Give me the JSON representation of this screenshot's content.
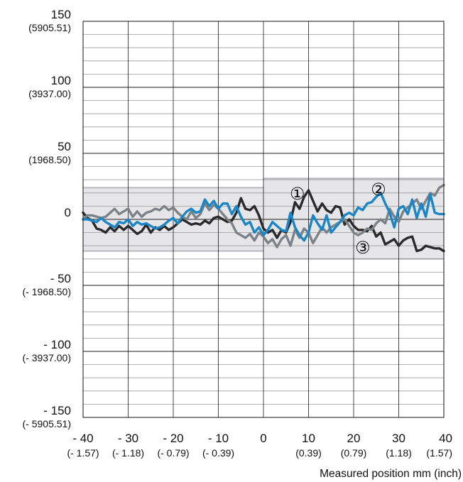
{
  "chart_data": {
    "type": "line",
    "xlabel": "Measured position mm (inch)",
    "ylabel": "",
    "xlim": [
      -40,
      40
    ],
    "ylim": [
      -150,
      150
    ],
    "grid": true,
    "x_ticks": [
      {
        "value": -40,
        "main": "- 40",
        "sub": "(- 1.57)"
      },
      {
        "value": -30,
        "main": "- 30",
        "sub": "(- 1.18)"
      },
      {
        "value": -20,
        "main": "- 20",
        "sub": "(- 0.79)"
      },
      {
        "value": -10,
        "main": "- 10",
        "sub": "(- 0.39)"
      },
      {
        "value": 0,
        "main": "0",
        "sub": ""
      },
      {
        "value": 10,
        "main": "10",
        "sub": "(0.39)"
      },
      {
        "value": 20,
        "main": "20",
        "sub": "(0.79)"
      },
      {
        "value": 30,
        "main": "30",
        "sub": "(1.18)"
      },
      {
        "value": 40,
        "main": "40",
        "sub": "(1.57)"
      }
    ],
    "y_ticks": [
      {
        "value": 150,
        "main": "150",
        "sub": "(5905.51)"
      },
      {
        "value": 100,
        "main": "100",
        "sub": "(3937.00)"
      },
      {
        "value": 50,
        "main": "50",
        "sub": "(1968.50)"
      },
      {
        "value": 0,
        "main": "0",
        "sub": ""
      },
      {
        "value": -50,
        "main": "- 50",
        "sub": "(- 1968.50)"
      },
      {
        "value": -100,
        "main": "- 100",
        "sub": "(- 3937.00)"
      },
      {
        "value": -150,
        "main": "- 150",
        "sub": "(- 5905.51)"
      }
    ],
    "bands": [
      {
        "x_from": -40,
        "x_to": 0,
        "y_from": -24,
        "y_to": 24,
        "color": "#e6e6e8"
      },
      {
        "x_from": 0,
        "x_to": 40,
        "y_from": -30,
        "y_to": 31,
        "color": "#e6e6e8"
      }
    ],
    "annotations": [
      {
        "text": "①",
        "x": 7.5,
        "y": 20
      },
      {
        "text": "②",
        "x": 25.5,
        "y": 23
      },
      {
        "text": "③",
        "x": 22,
        "y": -21
      }
    ],
    "series": [
      {
        "color": "#2a2a2a",
        "x": [
          -40,
          -39,
          -38,
          -37,
          -36,
          -35,
          -34,
          -33,
          -32,
          -31,
          -30,
          -29,
          -28,
          -27,
          -26,
          -25,
          -24,
          -23,
          -22,
          -21,
          -20,
          -19,
          -18,
          -17,
          -16,
          -15,
          -14,
          -13,
          -12,
          -11,
          -10,
          -9,
          -8,
          -7,
          -6,
          -5,
          -4,
          -3,
          -2,
          -1,
          0,
          1,
          2,
          3,
          4,
          5,
          6,
          7,
          8,
          9,
          10,
          11,
          12,
          13,
          14,
          15,
          16,
          17,
          18,
          19,
          20,
          21,
          22,
          23,
          24,
          25,
          26,
          27,
          28,
          29,
          30,
          31,
          32,
          33,
          34,
          35,
          36,
          37,
          38,
          39,
          40
        ],
        "y": [
          5,
          1,
          -1,
          -7,
          -8,
          -10,
          -6,
          -9,
          -5,
          -8,
          -5,
          -8,
          -11,
          -9,
          -4,
          -10,
          -6,
          -8,
          -5,
          -8,
          -6,
          -3,
          0,
          -2,
          -4,
          -3,
          -4,
          -1,
          -3,
          1,
          2,
          0,
          -2,
          -1,
          5,
          16,
          8,
          7,
          10,
          3,
          -7,
          -10,
          -8,
          -14,
          -8,
          -10,
          -2,
          13,
          8,
          17,
          22,
          14,
          6,
          12,
          7,
          5,
          10,
          9,
          -4,
          0,
          -5,
          -8,
          -8,
          -9,
          -5,
          -13,
          -10,
          -19,
          -17,
          -15,
          -20,
          -16,
          -14,
          -13,
          -24,
          -23,
          -20,
          -21,
          -22,
          -22,
          -24
        ]
      },
      {
        "color": "#7c8388",
        "x": [
          -40,
          -39,
          -38,
          -37,
          -36,
          -35,
          -34,
          -33,
          -32,
          -31,
          -30,
          -29,
          -28,
          -27,
          -26,
          -25,
          -24,
          -23,
          -22,
          -21,
          -20,
          -19,
          -18,
          -17,
          -16,
          -15,
          -14,
          -13,
          -12,
          -11,
          -10,
          -9,
          -8,
          -7,
          -6,
          -5,
          -4,
          -3,
          -2,
          -1,
          0,
          1,
          2,
          3,
          4,
          5,
          6,
          7,
          8,
          9,
          10,
          11,
          12,
          13,
          14,
          15,
          16,
          17,
          18,
          19,
          20,
          21,
          22,
          23,
          24,
          25,
          26,
          27,
          28,
          29,
          30,
          31,
          32,
          33,
          34,
          35,
          36,
          37,
          38,
          39,
          40
        ],
        "y": [
          0,
          3,
          3,
          2,
          1,
          2,
          5,
          8,
          4,
          6,
          8,
          2,
          6,
          2,
          5,
          6,
          8,
          7,
          10,
          7,
          9,
          5,
          2,
          0,
          6,
          1,
          4,
          12,
          7,
          11,
          8,
          4,
          0,
          -3,
          -10,
          -12,
          -14,
          -11,
          -16,
          -10,
          -13,
          -18,
          -15,
          -21,
          -15,
          -12,
          -20,
          -8,
          -14,
          -7,
          -10,
          -18,
          -12,
          -6,
          -10,
          -6,
          -4,
          -2,
          0,
          -5,
          -10,
          -12,
          -10,
          -7,
          -8,
          -3,
          0,
          -3,
          8,
          2,
          -2,
          6,
          9,
          12,
          15,
          8,
          14,
          20,
          18,
          24,
          26
        ]
      },
      {
        "color": "#1a86c7",
        "x": [
          -40,
          -39,
          -38,
          -37,
          -36,
          -35,
          -34,
          -33,
          -32,
          -31,
          -30,
          -29,
          -28,
          -27,
          -26,
          -25,
          -24,
          -23,
          -22,
          -21,
          -20,
          -19,
          -18,
          -17,
          -16,
          -15,
          -14,
          -13,
          -12,
          -11,
          -10,
          -9,
          -8,
          -7,
          -6,
          -5,
          -4,
          -3,
          -2,
          -1,
          0,
          1,
          2,
          3,
          4,
          5,
          6,
          7,
          8,
          9,
          10,
          11,
          12,
          13,
          14,
          15,
          16,
          17,
          18,
          19,
          20,
          21,
          22,
          23,
          24,
          25,
          26,
          27,
          28,
          29,
          30,
          31,
          32,
          33,
          34,
          35,
          36,
          37,
          38,
          39,
          40
        ],
        "y": [
          0,
          0,
          -1,
          -2,
          1,
          -2,
          -4,
          -6,
          -2,
          -3,
          0,
          -5,
          -2,
          -4,
          -3,
          -5,
          -7,
          -6,
          -4,
          -1,
          1,
          -3,
          2,
          6,
          8,
          5,
          6,
          15,
          10,
          14,
          8,
          12,
          12,
          4,
          10,
          2,
          -4,
          -2,
          -10,
          -6,
          -12,
          -8,
          -2,
          -5,
          -8,
          -9,
          5,
          -6,
          -12,
          -16,
          -10,
          3,
          -3,
          -8,
          3,
          -10,
          -6,
          -2,
          3,
          5,
          3,
          9,
          7,
          12,
          13,
          17,
          20,
          12,
          5,
          -6,
          8,
          10,
          4,
          15,
          1,
          12,
          2,
          19,
          5,
          4,
          4
        ]
      }
    ]
  }
}
